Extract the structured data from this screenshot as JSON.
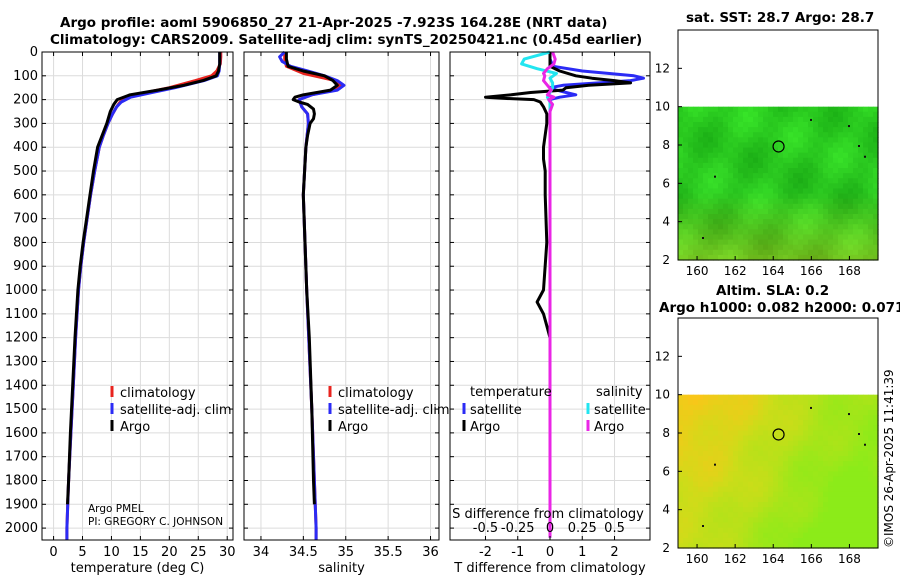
{
  "titles": {
    "line1": "Argo profile: aoml 5906850_27 21-Apr-2025 -7.923S 164.28E (NRT data)",
    "line2": "Climatology: CARS2009. Satellite-adj clim: synTS_20250421.nc (0.45d earlier)",
    "map1": "sat. SST: 28.7 Argo: 28.7",
    "map2a": "Altim. SLA: 0.2",
    "map2b": "Argo h1000: 0.082 h2000: 0.071"
  },
  "timestamp": "©IMOS 26-Apr-2025 11:41:39",
  "colors": {
    "climatology": "#e8231e",
    "satellite": "#2b2bf5",
    "argo": "#000000",
    "sal_sat": "#22e5f0",
    "sal_argo": "#ea25e6"
  },
  "chart_data": [
    {
      "type": "line",
      "id": "temperature",
      "xlabel": "temperature (deg C)",
      "xlim": [
        -2,
        31
      ],
      "xticks": [
        0,
        5,
        10,
        15,
        20,
        25,
        30
      ],
      "ylim": [
        0,
        2050
      ],
      "yticks": [
        0,
        100,
        200,
        300,
        400,
        500,
        600,
        700,
        800,
        900,
        1000,
        1100,
        1200,
        1300,
        1400,
        1500,
        1600,
        1700,
        1800,
        1900,
        2000
      ],
      "legend": [
        "climatology",
        "satellite-adj. clim",
        "Argo"
      ],
      "annotation": [
        "Argo PMEL",
        "PI: GREGORY C. JOHNSON"
      ],
      "series": [
        {
          "name": "climatology",
          "color": "#e8231e",
          "depth": [
            0,
            20,
            50,
            80,
            100,
            120,
            150,
            170,
            190,
            210,
            230,
            260,
            300,
            350,
            400,
            500,
            600,
            700,
            800,
            900,
            1000,
            1200,
            1400,
            1600,
            1800,
            2000,
            2050
          ],
          "values": [
            28.9,
            28.9,
            28.8,
            28.2,
            27.3,
            24.5,
            20,
            16,
            12.8,
            11.5,
            10.9,
            10.2,
            9.4,
            8.6,
            7.9,
            7.1,
            6.4,
            5.8,
            5.2,
            4.7,
            4.3,
            3.8,
            3.4,
            3.0,
            2.6,
            2.3,
            2.3
          ]
        },
        {
          "name": "satellite-adj. clim",
          "color": "#2b2bf5",
          "depth": [
            0,
            20,
            50,
            80,
            100,
            120,
            150,
            170,
            190,
            210,
            230,
            260,
            300,
            350,
            400,
            500,
            600,
            700,
            800,
            900,
            1000,
            1200,
            1400,
            1600,
            1800,
            2000,
            2050
          ],
          "values": [
            28.7,
            28.7,
            28.7,
            28.6,
            28.3,
            26,
            21,
            17,
            13.3,
            11.7,
            10.9,
            10.2,
            9.4,
            8.6,
            7.9,
            7.1,
            6.4,
            5.8,
            5.2,
            4.7,
            4.3,
            3.8,
            3.4,
            3.0,
            2.6,
            2.3,
            2.3
          ]
        },
        {
          "name": "Argo",
          "color": "#000000",
          "depth": [
            0,
            20,
            50,
            80,
            100,
            120,
            140,
            160,
            180,
            200,
            220,
            250,
            300,
            350,
            400,
            500,
            600,
            700,
            800,
            900,
            1000,
            1200,
            1400,
            1600,
            1800,
            1900
          ],
          "values": [
            28.7,
            28.7,
            28.7,
            28.5,
            28.1,
            25.8,
            22.5,
            18,
            13.2,
            11,
            10.4,
            9.8,
            9.2,
            8.4,
            7.6,
            6.9,
            6.3,
            5.7,
            5.1,
            4.6,
            4.2,
            3.7,
            3.3,
            2.9,
            2.6,
            2.4
          ]
        }
      ]
    },
    {
      "type": "line",
      "id": "salinity",
      "xlabel": "salinity",
      "xlim": [
        33.8,
        36.1
      ],
      "xticks": [
        34,
        34.5,
        35,
        35.5,
        36
      ],
      "xticklabels": [
        "34",
        "34.5",
        "35",
        "35.5",
        "36"
      ],
      "ylim": [
        0,
        2050
      ],
      "legend": [
        "climatology",
        "satellite-adj. clim",
        "Argo"
      ],
      "series": [
        {
          "name": "climatology",
          "color": "#e8231e",
          "depth": [
            0,
            30,
            60,
            90,
            120,
            140,
            160,
            180,
            200,
            230,
            260,
            300,
            400,
            600,
            800,
            1000,
            1500,
            2000,
            2050
          ],
          "values": [
            34.28,
            34.28,
            34.3,
            34.5,
            34.88,
            34.95,
            34.85,
            34.6,
            34.45,
            34.48,
            34.55,
            34.56,
            34.53,
            34.5,
            34.52,
            34.54,
            34.6,
            34.65,
            34.65
          ]
        },
        {
          "name": "satellite-adj. clim",
          "color": "#2b2bf5",
          "depth": [
            0,
            20,
            40,
            60,
            80,
            100,
            120,
            140,
            160,
            180,
            200,
            230,
            260,
            300,
            400,
            600,
            800,
            1000,
            1500,
            2000,
            2050
          ],
          "values": [
            34.28,
            34.22,
            34.25,
            34.35,
            34.55,
            34.75,
            34.9,
            34.98,
            34.9,
            34.6,
            34.45,
            34.48,
            34.55,
            34.56,
            34.53,
            34.5,
            34.52,
            34.54,
            34.6,
            34.65,
            34.65
          ]
        },
        {
          "name": "Argo",
          "color": "#000000",
          "depth": [
            0,
            30,
            60,
            80,
            100,
            120,
            140,
            160,
            180,
            190,
            200,
            210,
            220,
            240,
            260,
            280,
            300,
            350,
            400,
            600,
            800,
            1000,
            1200,
            1500,
            1800,
            1900
          ],
          "values": [
            34.3,
            34.3,
            34.32,
            34.5,
            34.75,
            34.85,
            34.9,
            34.82,
            34.5,
            34.4,
            34.38,
            34.45,
            34.55,
            34.62,
            34.63,
            34.62,
            34.58,
            34.55,
            34.53,
            34.5,
            34.52,
            34.54,
            34.57,
            34.6,
            34.62,
            34.63
          ]
        }
      ]
    },
    {
      "type": "line",
      "id": "difference",
      "xlabel": "T difference from climatology",
      "xlabel2": "S difference from climatology",
      "xlim": [
        -3.1,
        3.1
      ],
      "xticks": [
        -2,
        -1,
        0,
        1,
        2
      ],
      "xticks2": [
        -0.5,
        -0.25,
        0,
        0.25,
        0.5
      ],
      "xticklabels2": [
        "-0.5",
        "-0.25",
        "0",
        "0.25",
        "0.5"
      ],
      "s_scale": 4,
      "ylim": [
        0,
        2050
      ],
      "legend_headers": [
        "temperature",
        "salinity"
      ],
      "legend": [
        "satellite",
        "Argo",
        "satellite",
        "Argo"
      ],
      "series": [
        {
          "name": "temperature satellite",
          "color": "#2b2bf5",
          "depth": [
            0,
            30,
            60,
            80,
            100,
            110,
            120,
            130,
            140,
            150,
            160,
            170,
            180,
            190,
            200,
            210,
            230,
            260,
            300,
            400,
            600,
            800,
            1000,
            1500,
            2000,
            2040
          ],
          "values": [
            0,
            0,
            0.1,
            1,
            2.6,
            2.9,
            2.5,
            1.5,
            0.4,
            0,
            0.2,
            0.5,
            0.8,
            0.3,
            0,
            0,
            0,
            0,
            0,
            0,
            0,
            0,
            0,
            0,
            0,
            0
          ]
        },
        {
          "name": "temperature Argo",
          "color": "#000000",
          "depth": [
            0,
            30,
            60,
            80,
            100,
            110,
            120,
            130,
            140,
            150,
            160,
            170,
            180,
            190,
            195,
            200,
            210,
            230,
            260,
            300,
            400,
            450,
            500,
            600,
            800,
            1000,
            1050,
            1100,
            1150,
            1200,
            1300,
            1500,
            1800,
            1900
          ],
          "values": [
            0,
            0,
            0,
            0.3,
            0.8,
            1.3,
            2,
            2.5,
            1.2,
            0.5,
            0.4,
            -0.6,
            -1.2,
            -2,
            -1.4,
            -0.5,
            -0.3,
            -0.2,
            -0.1,
            -0.1,
            -0.2,
            -0.2,
            -0.15,
            -0.15,
            -0.1,
            -0.2,
            -0.4,
            -0.2,
            -0.1,
            0,
            0,
            0,
            0,
            0
          ]
        },
        {
          "name": "salinity satellite",
          "color": "#22e5f0",
          "scaled": true,
          "depth": [
            0,
            30,
            50,
            70,
            90,
            110,
            130,
            150,
            170,
            190,
            210,
            230,
            260,
            300,
            400,
            600,
            800,
            1000,
            1500,
            2000,
            2040
          ],
          "values": [
            0,
            -0.2,
            -0.22,
            -0.1,
            0.05,
            0,
            0.02,
            0.02,
            0,
            -0.02,
            0,
            0,
            0,
            0,
            0,
            0,
            0,
            0,
            0,
            0,
            0
          ]
        },
        {
          "name": "salinity Argo",
          "color": "#ea25e6",
          "scaled": true,
          "depth": [
            0,
            30,
            50,
            70,
            90,
            100,
            120,
            140,
            160,
            180,
            190,
            200,
            220,
            250,
            300,
            400,
            600,
            800,
            1000,
            1500,
            2000,
            2040
          ],
          "values": [
            0.02,
            0.04,
            0.03,
            -0.02,
            -0.05,
            -0.04,
            -0.05,
            -0.02,
            0.01,
            -0.02,
            0.03,
            -0.01,
            0.02,
            0,
            0,
            0,
            0,
            0,
            0,
            0,
            0,
            0
          ]
        }
      ]
    },
    {
      "type": "heatmap",
      "id": "sst-map",
      "title": "sat. SST: 28.7 Argo: 28.7",
      "xlim": [
        159,
        169.5
      ],
      "ylim": [
        2,
        14
      ],
      "xticks": [
        160,
        162,
        164,
        166,
        168
      ],
      "yticks": [
        2,
        4,
        6,
        8,
        10,
        12
      ],
      "data_top": 10,
      "marker": [
        164.28,
        7.923
      ]
    },
    {
      "type": "heatmap",
      "id": "sla-map",
      "title": "Altim. SLA: 0.2",
      "xlim": [
        159,
        169.5
      ],
      "ylim": [
        2,
        14
      ],
      "xticks": [
        160,
        162,
        164,
        166,
        168
      ],
      "yticks": [
        2,
        4,
        6,
        8,
        10,
        12
      ],
      "data_top": 10,
      "marker": [
        164.28,
        7.923
      ]
    }
  ]
}
